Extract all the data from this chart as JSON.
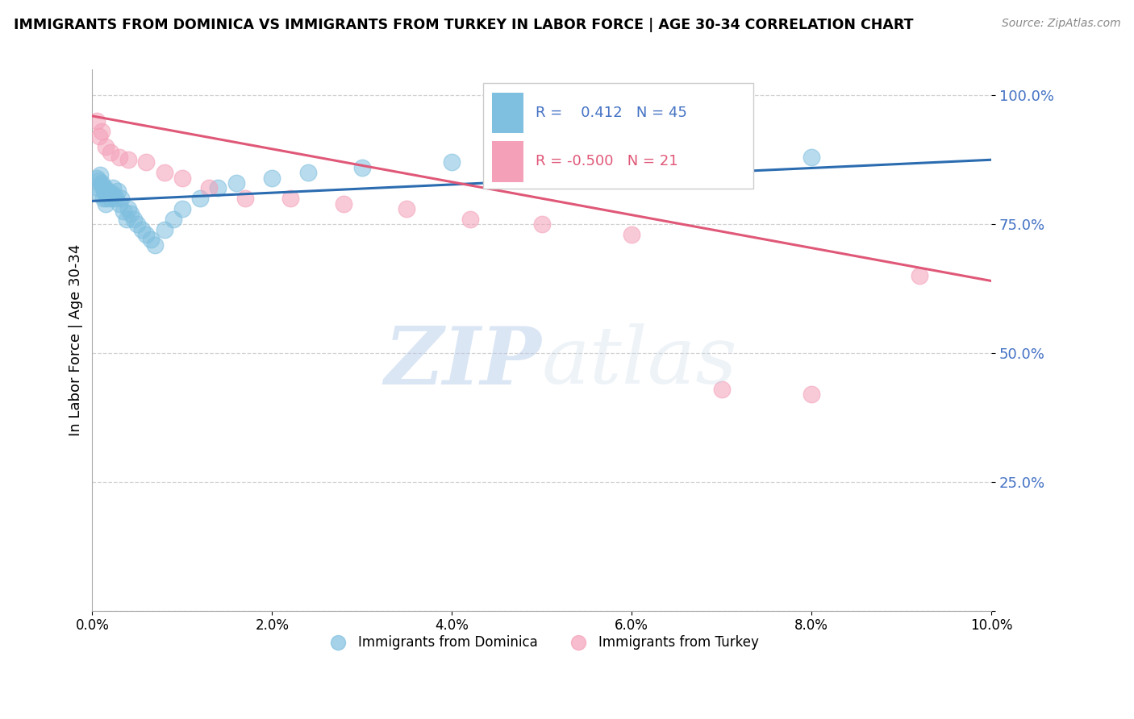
{
  "title": "IMMIGRANTS FROM DOMINICA VS IMMIGRANTS FROM TURKEY IN LABOR FORCE | AGE 30-34 CORRELATION CHART",
  "source": "Source: ZipAtlas.com",
  "ylabel": "In Labor Force | Age 30-34",
  "y_ticks": [
    0.0,
    0.25,
    0.5,
    0.75,
    1.0
  ],
  "y_tick_labels": [
    "",
    "25.0%",
    "50.0%",
    "75.0%",
    "100.0%"
  ],
  "xlim": [
    0.0,
    0.1
  ],
  "ylim": [
    0.0,
    1.05
  ],
  "dominica_R": 0.412,
  "dominica_N": 45,
  "turkey_R": -0.5,
  "turkey_N": 21,
  "dominica_color": "#7fbfdf",
  "turkey_color": "#f4a0b8",
  "dominica_trend_color": "#2b6cb0",
  "turkey_trend_color": "#e05878",
  "legend_label_dominica": "Immigrants from Dominica",
  "legend_label_turkey": "Immigrants from Turkey",
  "background_color": "#ffffff",
  "dominica_x": [
    0.0005,
    0.0006,
    0.0007,
    0.0008,
    0.0009,
    0.001,
    0.001,
    0.0012,
    0.0013,
    0.0014,
    0.0015,
    0.0015,
    0.0016,
    0.0018,
    0.002,
    0.0022,
    0.0023,
    0.0025,
    0.0026,
    0.0028,
    0.003,
    0.0032,
    0.0035,
    0.0038,
    0.004,
    0.0043,
    0.0046,
    0.005,
    0.0055,
    0.006,
    0.0065,
    0.007,
    0.008,
    0.009,
    0.01,
    0.012,
    0.014,
    0.016,
    0.02,
    0.024,
    0.03,
    0.04,
    0.05,
    0.065,
    0.08
  ],
  "dominica_y": [
    0.84,
    0.82,
    0.835,
    0.81,
    0.845,
    0.83,
    0.825,
    0.8,
    0.815,
    0.82,
    0.79,
    0.81,
    0.8,
    0.815,
    0.8,
    0.81,
    0.82,
    0.805,
    0.8,
    0.815,
    0.79,
    0.8,
    0.775,
    0.76,
    0.78,
    0.77,
    0.76,
    0.75,
    0.74,
    0.73,
    0.72,
    0.71,
    0.74,
    0.76,
    0.78,
    0.8,
    0.82,
    0.83,
    0.84,
    0.85,
    0.86,
    0.87,
    0.87,
    0.875,
    0.88
  ],
  "turkey_x": [
    0.0005,
    0.0008,
    0.001,
    0.0015,
    0.002,
    0.003,
    0.004,
    0.006,
    0.008,
    0.01,
    0.013,
    0.017,
    0.022,
    0.028,
    0.035,
    0.042,
    0.05,
    0.06,
    0.07,
    0.08,
    0.092
  ],
  "turkey_y": [
    0.95,
    0.92,
    0.93,
    0.9,
    0.89,
    0.88,
    0.875,
    0.87,
    0.85,
    0.84,
    0.82,
    0.8,
    0.8,
    0.79,
    0.78,
    0.76,
    0.75,
    0.73,
    0.43,
    0.42,
    0.65
  ],
  "dom_trend_x": [
    0.0,
    0.1
  ],
  "dom_trend_y": [
    0.795,
    0.875
  ],
  "tur_trend_x": [
    0.0,
    0.1
  ],
  "tur_trend_y": [
    0.96,
    0.64
  ]
}
